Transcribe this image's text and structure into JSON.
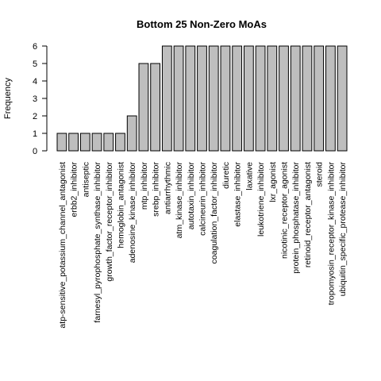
{
  "chart_data": {
    "type": "bar",
    "title": "Bottom 25 Non-Zero MoAs",
    "xlabel": "",
    "ylabel": "Frequency",
    "ylim": [
      0,
      6
    ],
    "yticks": [
      0,
      1,
      2,
      3,
      4,
      5,
      6
    ],
    "bar_color": "#bebebe",
    "categories": [
      "atp-sensitive_potassium_channel_antagonist",
      "erbb2_inhibitor",
      "antiseptic",
      "farnesyl_pyrophosphate_synthase_inhibitor",
      "growth_factor_receptor_inhibitor",
      "hemoglobin_antagonist",
      "adenosine_kinase_inhibitor",
      "mtp_inhibitor",
      "srebp_inhibitor",
      "antiarrhythmic",
      "atm_kinase_inhibitor",
      "autotaxin_inhibitor",
      "calcineurin_inhibitor",
      "coagulation_factor_inhibitor",
      "diuretic",
      "elastase_inhibitor",
      "laxative",
      "leukotriene_inhibitor",
      "lxr_agonist",
      "nicotinic_receptor_agonist",
      "protein_phosphatase_inhibitor",
      "retinoid_receptor_antagonist",
      "steroid",
      "tropomyosin_receptor_kinase_inhibitor",
      "ubiquitin_specific_protease_inhibitor"
    ],
    "values": [
      1,
      1,
      1,
      1,
      1,
      1,
      2,
      5,
      5,
      6,
      6,
      6,
      6,
      6,
      6,
      6,
      6,
      6,
      6,
      6,
      6,
      6,
      6,
      6,
      6
    ]
  }
}
